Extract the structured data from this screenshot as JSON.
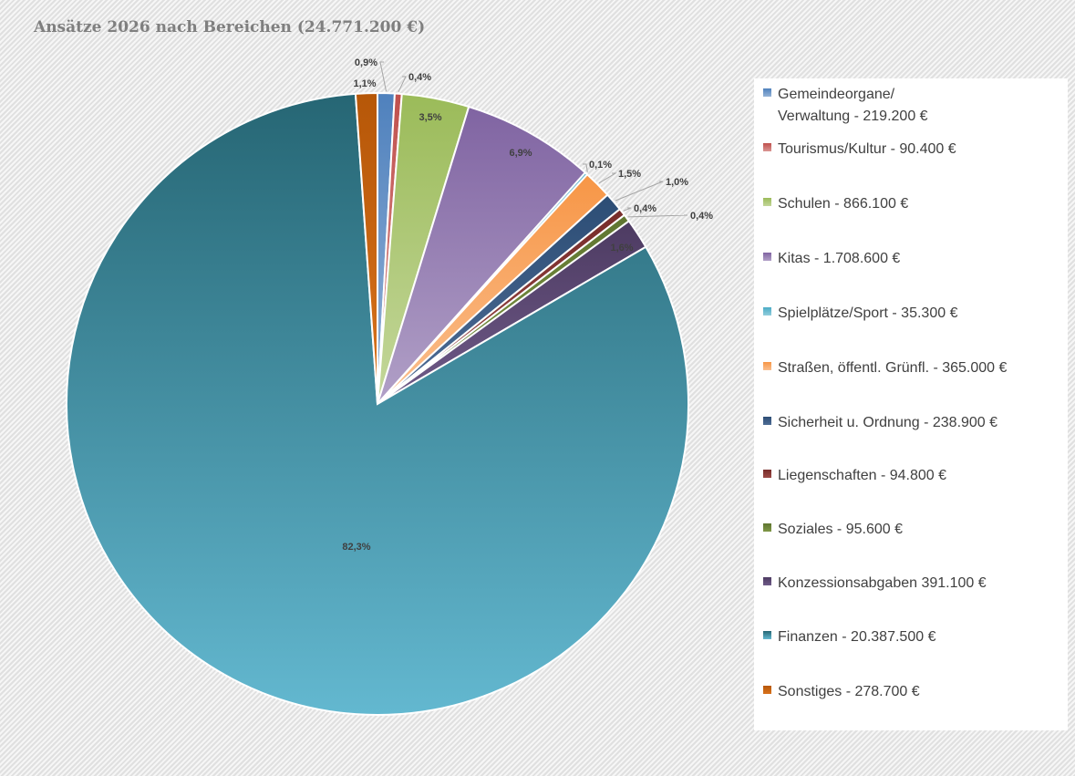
{
  "chart_data": {
    "type": "pie",
    "title": "Ansätze 2026 nach Bereichen (24.771.200 €)",
    "slices": [
      {
        "legend": "Gemeindeorgane/\nVerwaltung -  219.200 €",
        "value": 219200,
        "percent_label": "0,9%",
        "color": "#4f81bd",
        "color_light": "#95b3d7"
      },
      {
        "legend": "Tourismus/Kultur -  90.400 €",
        "value": 90400,
        "percent_label": "0,4%",
        "color": "#c0504d",
        "color_light": "#da9694"
      },
      {
        "legend": "Schulen -  866.100 €",
        "value": 866100,
        "percent_label": "3,5%",
        "color": "#9bbb59",
        "color_light": "#c4d79b"
      },
      {
        "legend": "Kitas -  1.708.600 €",
        "value": 1708600,
        "percent_label": "6,9%",
        "color": "#8064a2",
        "color_light": "#b1a0c7"
      },
      {
        "legend": "Spielplätze/Sport -  35.300 €",
        "value": 35300,
        "percent_label": "0,1%",
        "color": "#4bacc6",
        "color_light": "#92cddc"
      },
      {
        "legend": "Straßen, öffentl. Grünfl. -  365.000 €",
        "value": 365000,
        "percent_label": "1,5%",
        "color": "#f79646",
        "color_light": "#fabf8f"
      },
      {
        "legend": "Sicherheit u. Ordnung -  238.900 €",
        "value": 238900,
        "percent_label": "1,0%",
        "color": "#2c4d75",
        "color_light": "#4f6d96"
      },
      {
        "legend": "Liegenschaften -  94.800 €",
        "value": 94800,
        "percent_label": "0,4%",
        "color": "#772c2a",
        "color_light": "#9c4a47"
      },
      {
        "legend": "Soziales -  95.600 €",
        "value": 95600,
        "percent_label": "0,4%",
        "color": "#5f7530",
        "color_light": "#7f9847"
      },
      {
        "legend": "Konzessionsabgaben 391.100 €",
        "value": 391100,
        "percent_label": "1,6%",
        "color": "#4d3b62",
        "color_light": "#6f5a88"
      },
      {
        "legend": "Finanzen -  20.387.500 €",
        "value": 20387500,
        "percent_label": "82,3%",
        "color": "#266674",
        "color_light": "#63b8d0"
      },
      {
        "legend": "Sonstiges -  278.700 €",
        "value": 278700,
        "percent_label": "1,1%",
        "color": "#b65708",
        "color_light": "#d9731d"
      }
    ],
    "legend_position": "right"
  }
}
